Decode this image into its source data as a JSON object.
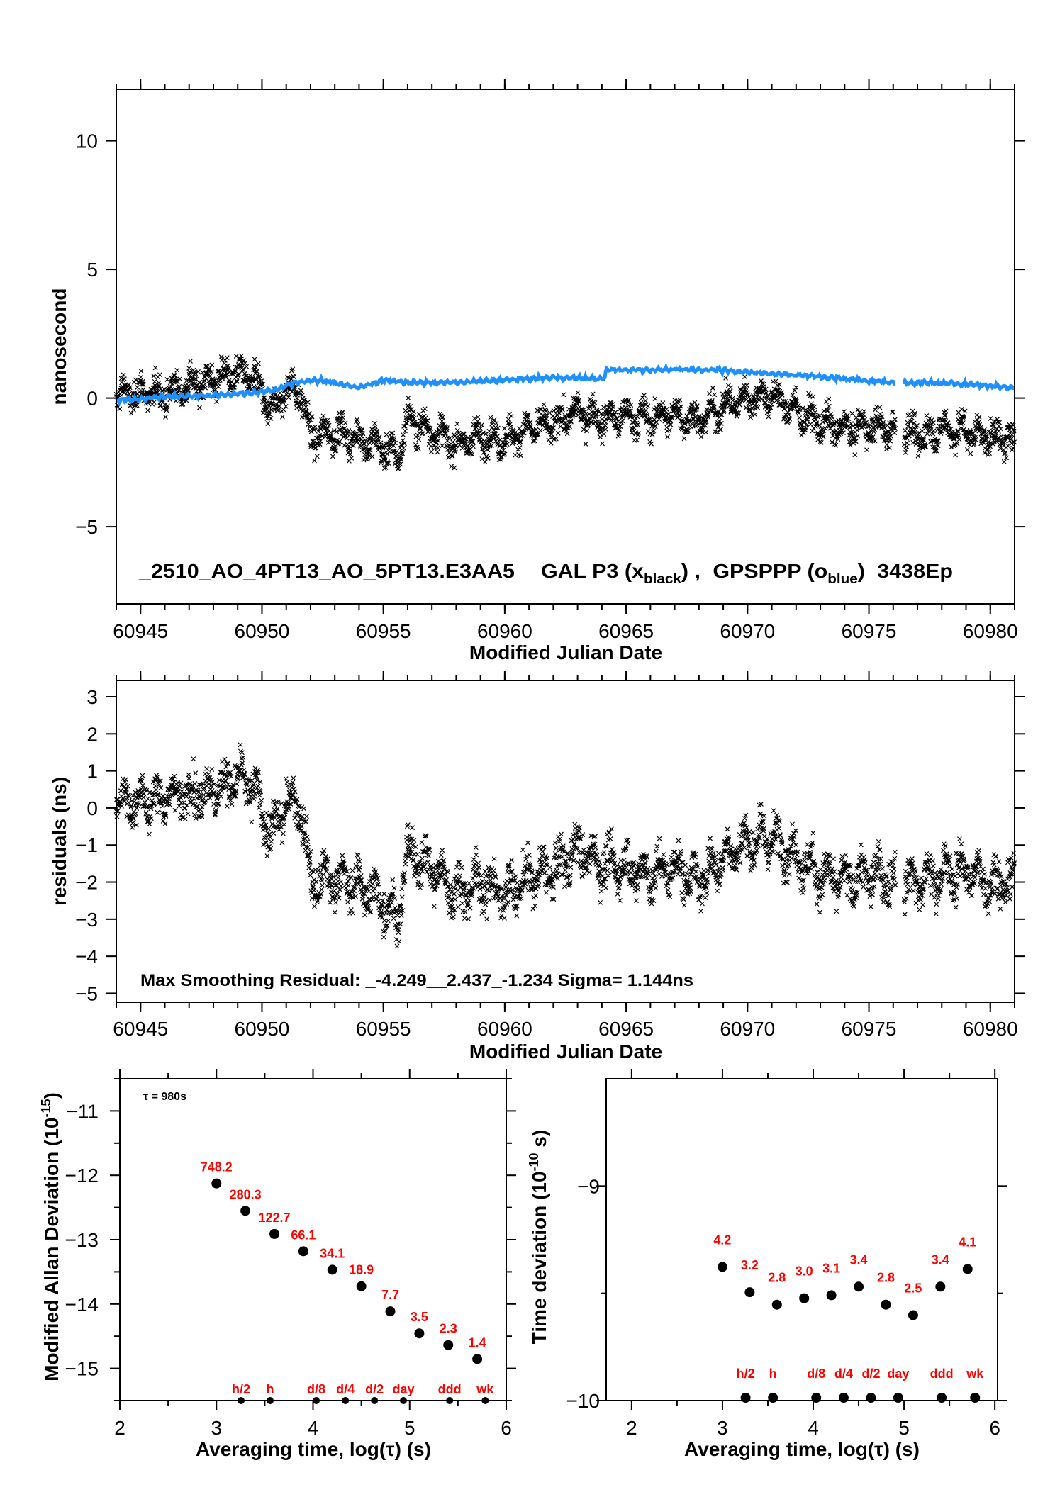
{
  "colors": {
    "scatter": "#000000",
    "smooth_line": "#1e90ff",
    "point_labels": "#ff0000",
    "points": "#000000"
  },
  "chart_data": [
    {
      "id": "time-series",
      "type": "scatter",
      "ylabel": "nanosecond",
      "xlabel": "Modified Julian Date",
      "xlim": [
        60944,
        60981
      ],
      "ylim": [
        -8,
        12
      ],
      "x_ticks": [
        "60945",
        "60950",
        "60955",
        "60960",
        "60965",
        "60970",
        "60975",
        "60980"
      ],
      "y_ticks": [
        "10",
        "5",
        "0",
        "−5"
      ],
      "annotation": {
        "station": "_2510_AO_4PT13_AO_5PT13.E3AA5",
        "series1": "GAL P3 (x",
        "series1_sub": "black",
        "series1_end": ") ,",
        "series2": "GPSPPP (o",
        "series2_sub": "blue",
        "series2_end": ")",
        "epochs": "3438Ep"
      },
      "series": [
        {
          "marker": "x",
          "color": "#000000",
          "x": [
            60944,
            60945,
            60946,
            60947,
            60948,
            60949,
            60949.7,
            60950.4,
            60951,
            60951.6,
            60952,
            60953,
            60954,
            60955,
            60955.6,
            60956,
            60957,
            60958,
            60959,
            60960,
            60961,
            60962,
            60963,
            60964,
            60965,
            60966,
            60967,
            60968,
            60969,
            60970,
            60971,
            60972,
            60973,
            60974,
            60975,
            60976,
            60977,
            60978,
            60979,
            60980,
            60981
          ],
          "y": [
            0.1,
            0.2,
            0.2,
            0.5,
            0.7,
            1.0,
            0.7,
            -0.6,
            0.4,
            0.2,
            -1.5,
            -1.3,
            -1.6,
            -1.9,
            -2.3,
            -0.8,
            -1.3,
            -1.8,
            -1.5,
            -1.6,
            -1.2,
            -1.0,
            -0.5,
            -0.8,
            -0.7,
            -0.8,
            -0.6,
            -0.9,
            -0.3,
            0.0,
            0.1,
            -0.5,
            -1.0,
            -1.2,
            -1.1,
            -1.2,
            -1.5,
            -1.2,
            -1.3,
            -1.5,
            -1.6
          ]
        },
        {
          "marker": "o",
          "color": "#1e90ff",
          "x": [
            60944,
            60946,
            60948,
            60949.5,
            60950.5,
            60951,
            60952,
            60953,
            60954,
            60955,
            60956,
            60958,
            60960,
            60962,
            60964.1,
            60964.2,
            60966,
            60968,
            60969,
            60970,
            60972,
            60974,
            60976,
            60977,
            60979,
            60981
          ],
          "y": [
            -0.1,
            0.05,
            0.1,
            0.2,
            0.3,
            0.5,
            0.7,
            0.6,
            0.4,
            0.7,
            0.6,
            0.6,
            0.7,
            0.8,
            0.75,
            1.1,
            1.1,
            1.1,
            1.1,
            1.0,
            0.9,
            0.75,
            0.6,
            0.6,
            0.55,
            0.4
          ]
        }
      ]
    },
    {
      "id": "residuals",
      "type": "scatter",
      "ylabel": "residuals (ns)",
      "xlabel": "Modified Julian Date",
      "xlim": [
        60944,
        60981
      ],
      "ylim": [
        -5.24,
        3.44
      ],
      "x_ticks": [
        "60945",
        "60950",
        "60955",
        "60960",
        "60965",
        "60970",
        "60975",
        "60980"
      ],
      "y_ticks": [
        "3",
        "2",
        "1",
        "0",
        "−1",
        "−2",
        "−3",
        "−4",
        "−5"
      ],
      "annotation": "Max Smoothing Residual: _-4.249__2.437_-1.234  Sigma= 1.144ns",
      "series": [
        {
          "marker": "x",
          "color": "#000000",
          "x": [
            60944,
            60945,
            60946,
            60947,
            60948,
            60949,
            60949.7,
            60950.4,
            60951,
            60951.6,
            60952,
            60953,
            60954,
            60955,
            60955.6,
            60956,
            60957,
            60958,
            60959,
            60960,
            60961,
            60962,
            60963,
            60964,
            60965,
            60966,
            60967,
            60968,
            60969,
            60970,
            60971,
            60972,
            60973,
            60974,
            60975,
            60976,
            60977,
            60978,
            60979,
            60980,
            60981
          ],
          "y": [
            0.2,
            0.2,
            0.3,
            0.4,
            0.5,
            0.8,
            0.5,
            -0.8,
            0.2,
            0.1,
            -2.0,
            -1.9,
            -2.1,
            -2.5,
            -3.0,
            -1.2,
            -1.6,
            -2.3,
            -2.0,
            -2.3,
            -1.9,
            -1.7,
            -1.1,
            -1.5,
            -1.6,
            -1.8,
            -1.6,
            -2.0,
            -1.3,
            -0.9,
            -0.8,
            -1.3,
            -1.8,
            -2.0,
            -1.8,
            -1.9,
            -2.0,
            -1.8,
            -1.7,
            -2.0,
            -2.0
          ]
        }
      ]
    },
    {
      "id": "mdev",
      "type": "scatter",
      "ylabel": "Modified Allan Deviation (10",
      "ylabel_sup": "-15",
      "ylabel_end": ")",
      "xlabel": "Averaging time, log(τ) (s)",
      "xlim": [
        2,
        6
      ],
      "ylim": [
        -15.5,
        -10.5
      ],
      "x_ticks": [
        "2",
        "3",
        "4",
        "5",
        "6"
      ],
      "y_ticks": [
        "−11",
        "−12",
        "−13",
        "−14",
        "−15"
      ],
      "annotation": "τ = 980s",
      "x": [
        3.0,
        3.3,
        3.6,
        3.9,
        4.2,
        4.5,
        4.8,
        5.1,
        5.4,
        5.7
      ],
      "y": [
        -12.126,
        -12.552,
        -12.911,
        -13.18,
        -13.467,
        -13.724,
        -14.114,
        -14.456,
        -14.638,
        -14.854
      ],
      "labels": [
        "748.2",
        "280.3",
        "122.7",
        "66.1",
        "34.1",
        "18.9",
        "7.7",
        "3.5",
        "2.3",
        "1.4"
      ],
      "markers": {
        "x": [
          3.255,
          3.556,
          4.033,
          4.335,
          4.636,
          4.936,
          5.414,
          5.782
        ],
        "labels": [
          "h/2",
          "h",
          "d/8",
          "d/4",
          "d/2",
          "day",
          "ddd",
          "wk"
        ]
      }
    },
    {
      "id": "tdev",
      "type": "scatter",
      "ylabel": "Time deviation (10",
      "ylabel_sup": "-10",
      "ylabel_end": " s)",
      "xlabel": "Averaging time, log(τ) (s)",
      "xlim": [
        1.72,
        6.03
      ],
      "ylim": [
        -10,
        -8.5
      ],
      "x_ticks": [
        "2",
        "3",
        "4",
        "5",
        "6"
      ],
      "y_ticks": [
        "−9",
        "−10"
      ],
      "x": [
        3.0,
        3.3,
        3.6,
        3.9,
        4.2,
        4.5,
        4.8,
        5.1,
        5.4,
        5.7
      ],
      "y": [
        -9.377,
        -9.495,
        -9.553,
        -9.523,
        -9.509,
        -9.469,
        -9.553,
        -9.602,
        -9.469,
        -9.387
      ],
      "labels": [
        "4.2",
        "3.2",
        "2.8",
        "3.0",
        "3.1",
        "3.4",
        "2.8",
        "2.5",
        "3.4",
        "4.1"
      ],
      "markers": {
        "x": [
          3.255,
          3.556,
          4.033,
          4.335,
          4.636,
          4.936,
          5.414,
          5.782
        ],
        "labels": [
          "h/2",
          "h",
          "d/8",
          "d/4",
          "d/2",
          "day",
          "ddd",
          "wk"
        ]
      }
    }
  ]
}
